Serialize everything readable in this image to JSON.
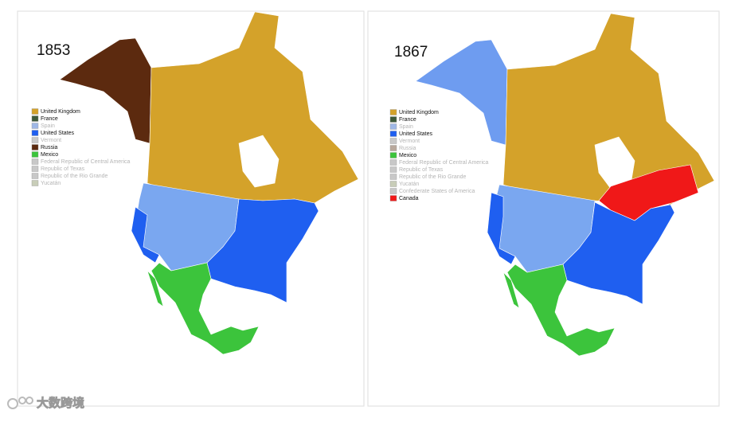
{
  "panels": [
    {
      "year": "1853",
      "legend": [
        {
          "label": "United Kingdom",
          "color": "#d4a22a",
          "faded": false
        },
        {
          "label": "France",
          "color": "#3d5a3a",
          "faded": false
        },
        {
          "label": "Spain",
          "color": "#9fb8e6",
          "faded": true
        },
        {
          "label": "United States",
          "color": "#1f5ff0",
          "faded": false
        },
        {
          "label": "Vermont",
          "color": "#c8c8c8",
          "faded": true
        },
        {
          "label": "Russia",
          "color": "#5c2a0f",
          "faded": false
        },
        {
          "label": "Mexico",
          "color": "#3cc43c",
          "faded": false
        },
        {
          "label": "Federal Republic of Central America",
          "color": "#c8c8c8",
          "faded": true
        },
        {
          "label": "Republic of Texas",
          "color": "#c8c8c8",
          "faded": true
        },
        {
          "label": "Republic of the Rio Grande",
          "color": "#c8c8c8",
          "faded": true
        },
        {
          "label": "Yucatán",
          "color": "#c8cdb8",
          "faded": true
        }
      ]
    },
    {
      "year": "1867",
      "legend": [
        {
          "label": "United Kingdom",
          "color": "#d4a22a",
          "faded": false
        },
        {
          "label": "France",
          "color": "#3d5a3a",
          "faded": false
        },
        {
          "label": "Spain",
          "color": "#9fb8e6",
          "faded": true
        },
        {
          "label": "United States",
          "color": "#1f5ff0",
          "faded": false
        },
        {
          "label": "Vermont",
          "color": "#c8c8c8",
          "faded": true
        },
        {
          "label": "Russia",
          "color": "#b8a89c",
          "faded": true
        },
        {
          "label": "Mexico",
          "color": "#3cc43c",
          "faded": false
        },
        {
          "label": "Federal Republic of Central America",
          "color": "#c8c8c8",
          "faded": true
        },
        {
          "label": "Republic of Texas",
          "color": "#c8c8c8",
          "faded": true
        },
        {
          "label": "Republic of the Rio Grande",
          "color": "#c8c8c8",
          "faded": true
        },
        {
          "label": "Yucatán",
          "color": "#c8cdb8",
          "faded": true
        },
        {
          "label": "Confederate States of America",
          "color": "#c8c8c8",
          "faded": true
        },
        {
          "label": "Canada",
          "color": "#f01818",
          "faded": false
        }
      ]
    }
  ],
  "watermark": "大数跨境"
}
